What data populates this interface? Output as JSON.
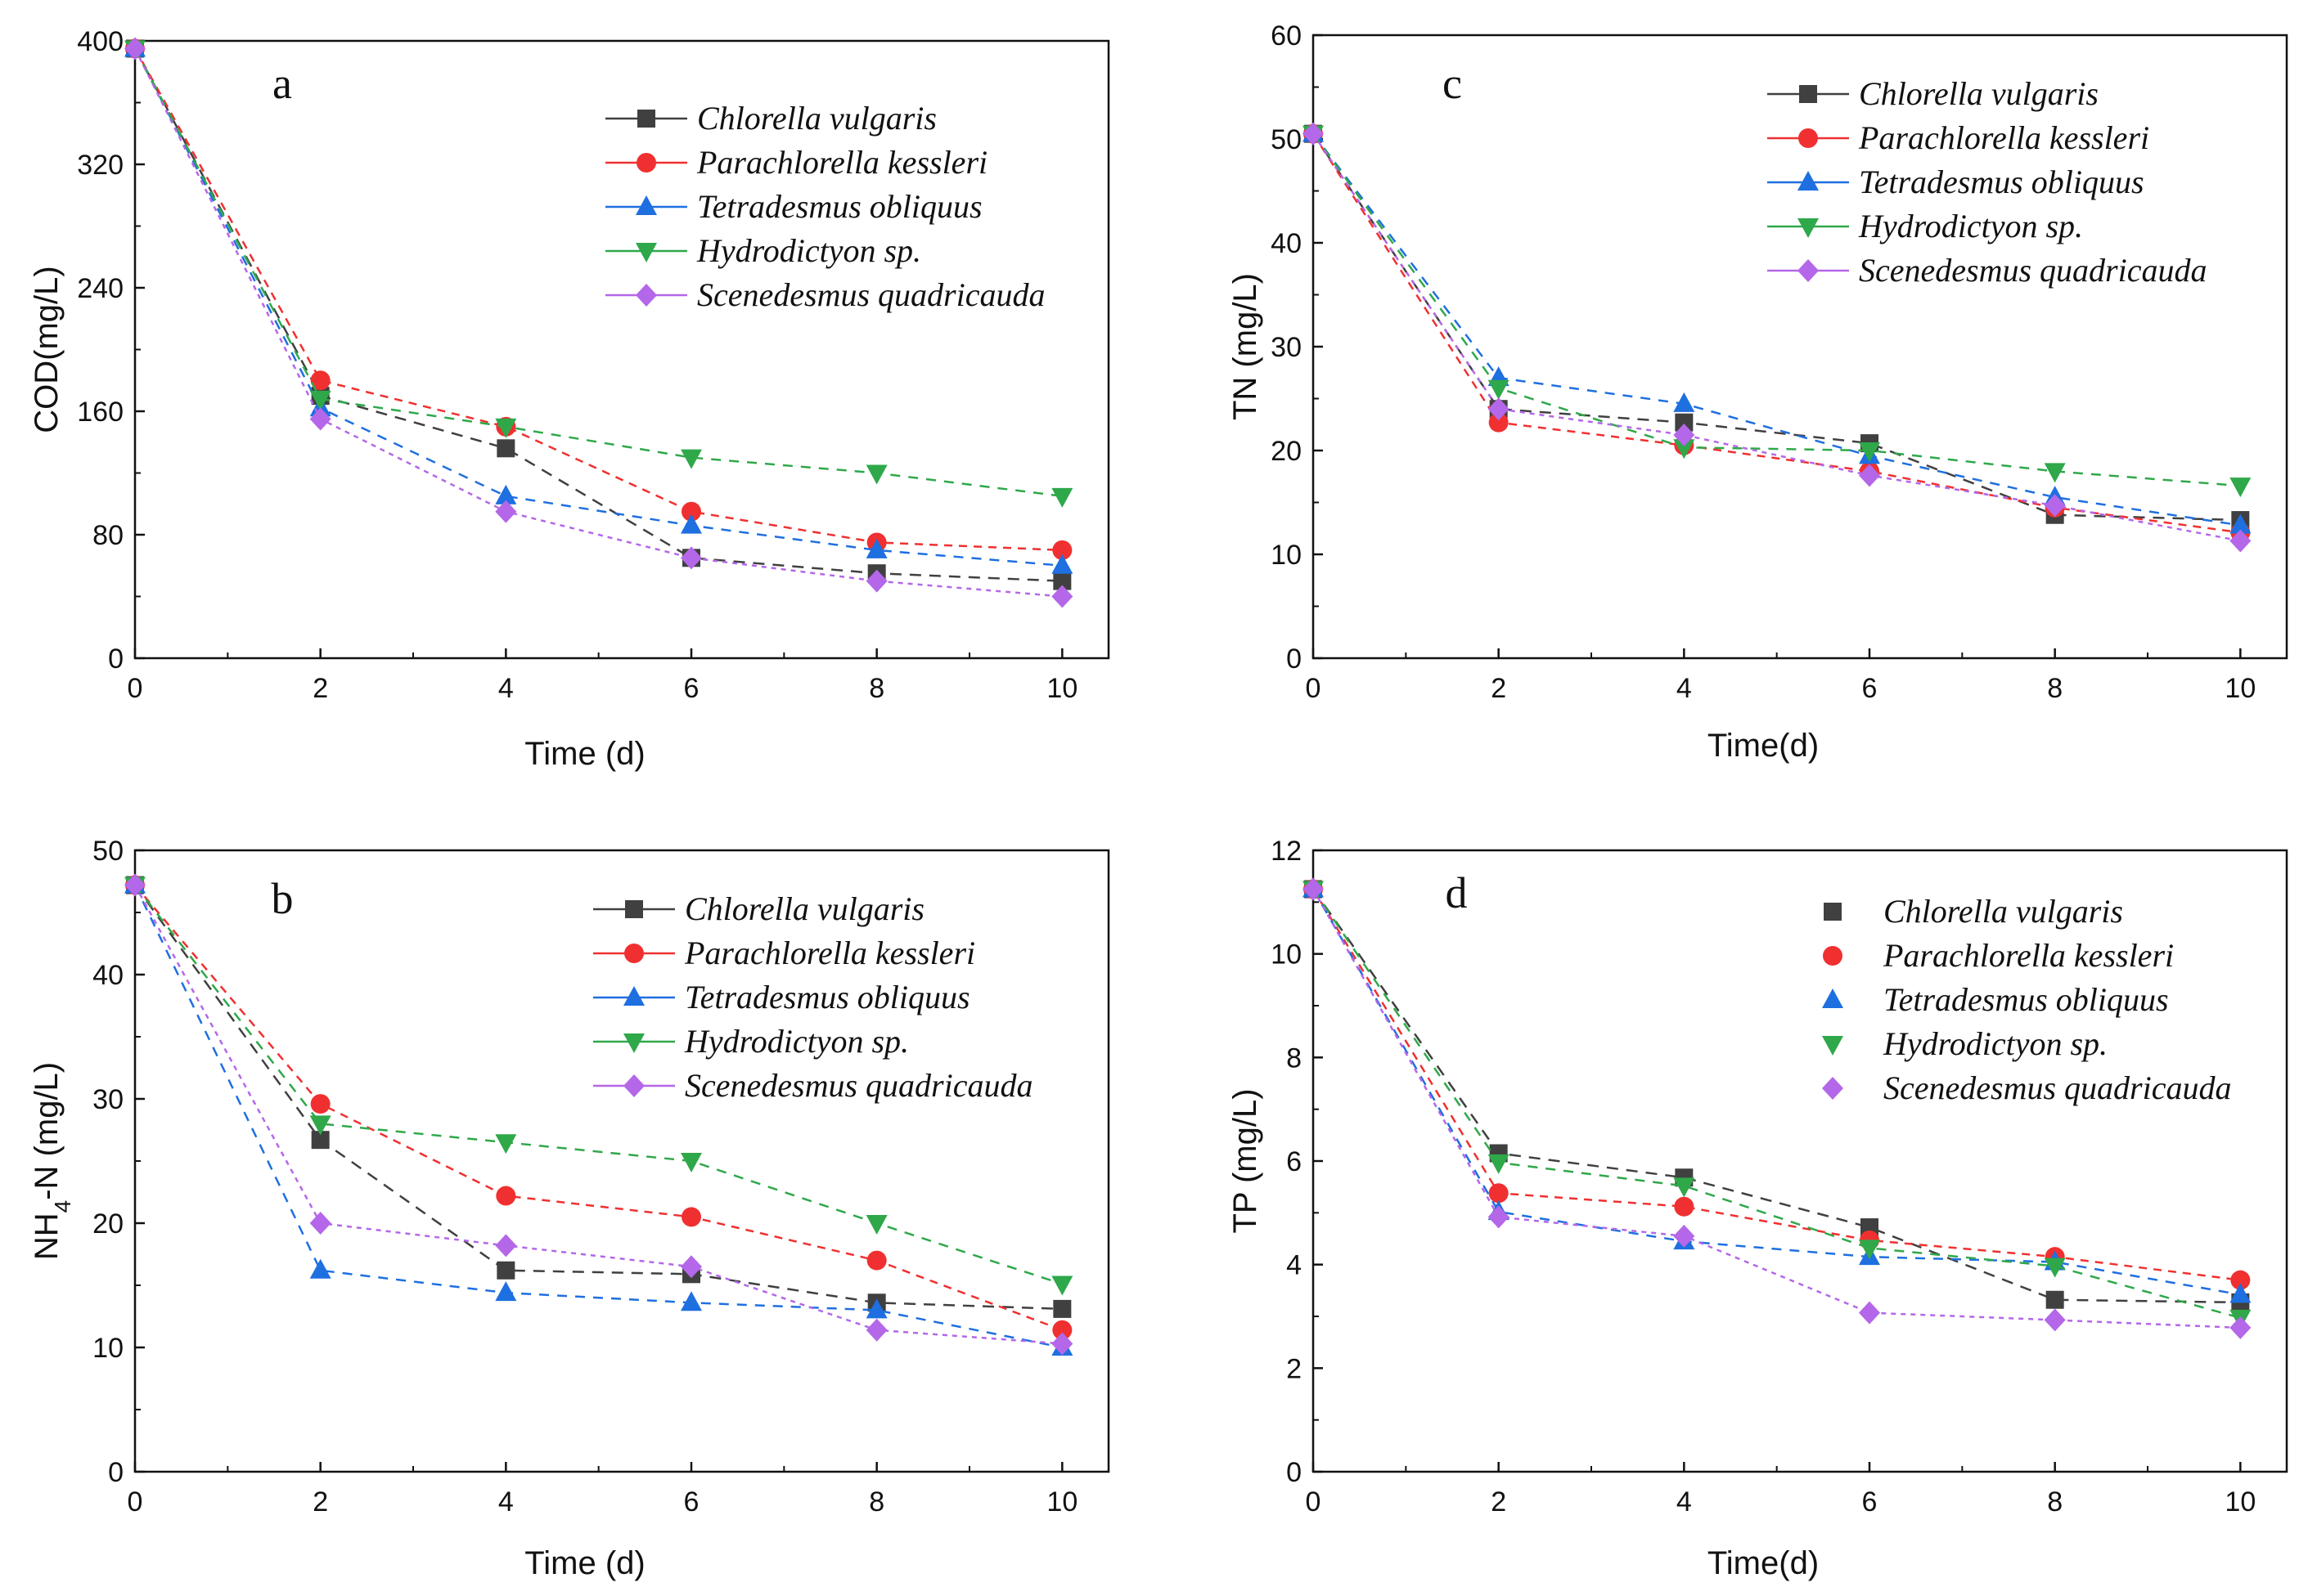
{
  "chart_data": [
    {
      "type": "line",
      "panel_letter": "a",
      "xlabel": "Time (d)",
      "ylabel": "COD(mg/L)",
      "xlim": [
        0,
        10.5
      ],
      "ylim": [
        0,
        400
      ],
      "xticks": [
        "0",
        "2",
        "4",
        "6",
        "8",
        "10"
      ],
      "yticks": [
        "0",
        "80",
        "160",
        "240",
        "320",
        "400"
      ],
      "x": [
        0,
        2,
        4,
        6,
        8,
        10
      ],
      "series": [
        {
          "name": "Chlorella vulgaris",
          "color": "#404040",
          "marker": "square",
          "values": [
            395,
            170,
            136,
            65,
            55,
            50
          ]
        },
        {
          "name": "Parachlorella kessleri",
          "color": "#f03030",
          "marker": "circle",
          "values": [
            395,
            180,
            150,
            95,
            75,
            70
          ]
        },
        {
          "name": "Tetradesmus obliquus",
          "color": "#1e6fe0",
          "marker": "triangle-up",
          "values": [
            395,
            162,
            105,
            86,
            70,
            60
          ]
        },
        {
          "name": "Hydrodictyon sp.",
          "color": "#2fa84a",
          "marker": "triangle-down",
          "values": [
            395,
            168,
            150,
            130,
            120,
            105
          ]
        },
        {
          "name": "Scenedesmus quadricauda",
          "color": "#b467e8",
          "marker": "diamond",
          "values": [
            395,
            155,
            95,
            65,
            50,
            40
          ]
        }
      ]
    },
    {
      "type": "line",
      "panel_letter": "b",
      "xlabel": "Time (d)",
      "ylabel": "NH4-N (mg/L)",
      "xlim": [
        0,
        10.5
      ],
      "ylim": [
        0,
        50
      ],
      "xticks": [
        "0",
        "2",
        "4",
        "6",
        "8",
        "10"
      ],
      "yticks": [
        "0",
        "10",
        "20",
        "30",
        "40",
        "50"
      ],
      "x": [
        0,
        2,
        4,
        6,
        8,
        10
      ],
      "series": [
        {
          "name": "Chlorella vulgaris",
          "color": "#404040",
          "marker": "square",
          "values": [
            47.2,
            26.7,
            16.2,
            15.9,
            13.6,
            13.1
          ]
        },
        {
          "name": "Parachlorella kessleri",
          "color": "#f03030",
          "marker": "circle",
          "values": [
            47.2,
            29.6,
            22.2,
            20.5,
            17.0,
            11.4
          ]
        },
        {
          "name": "Tetradesmus obliquus",
          "color": "#1e6fe0",
          "marker": "triangle-up",
          "values": [
            47.2,
            16.2,
            14.4,
            13.6,
            13.0,
            10.0
          ]
        },
        {
          "name": "Hydrodictyon sp.",
          "color": "#2fa84a",
          "marker": "triangle-down",
          "values": [
            47.2,
            28.0,
            26.5,
            25.0,
            20.0,
            15.1
          ]
        },
        {
          "name": "Scenedesmus quadricauda",
          "color": "#b467e8",
          "marker": "diamond",
          "values": [
            47.2,
            20.0,
            18.2,
            16.5,
            11.4,
            10.3
          ]
        }
      ]
    },
    {
      "type": "line",
      "panel_letter": "c",
      "xlabel": "Time(d)",
      "ylabel": "TN (mg/L)",
      "xlim": [
        0,
        10.5
      ],
      "ylim": [
        0,
        60
      ],
      "xticks": [
        "0",
        "2",
        "4",
        "6",
        "8",
        "10"
      ],
      "yticks": [
        "0",
        "10",
        "20",
        "30",
        "40",
        "50",
        "60"
      ],
      "x": [
        0,
        2,
        4,
        6,
        8,
        10
      ],
      "series": [
        {
          "name": "Chlorella vulgaris",
          "color": "#404040",
          "marker": "square",
          "values": [
            50.5,
            24.0,
            22.7,
            20.7,
            13.8,
            13.3
          ]
        },
        {
          "name": "Parachlorella kessleri",
          "color": "#f03030",
          "marker": "circle",
          "values": [
            50.5,
            22.7,
            20.5,
            18.0,
            14.5,
            12.1
          ]
        },
        {
          "name": "Tetradesmus obliquus",
          "color": "#1e6fe0",
          "marker": "triangle-up",
          "values": [
            50.5,
            27.0,
            24.5,
            19.5,
            15.5,
            12.8
          ]
        },
        {
          "name": "Hydrodictyon sp.",
          "color": "#2fa84a",
          "marker": "triangle-down",
          "values": [
            50.5,
            26.0,
            20.3,
            20.0,
            18.0,
            16.6
          ]
        },
        {
          "name": "Scenedesmus quadricauda",
          "color": "#b467e8",
          "marker": "diamond",
          "values": [
            50.5,
            24.0,
            21.5,
            17.6,
            14.7,
            11.3
          ]
        }
      ]
    },
    {
      "type": "line",
      "panel_letter": "d",
      "xlabel": "Time(d)",
      "ylabel": "TP (mg/L)",
      "xlim": [
        0,
        10.5
      ],
      "ylim": [
        0,
        12
      ],
      "xticks": [
        "0",
        "2",
        "4",
        "6",
        "8",
        "10"
      ],
      "yticks": [
        "0",
        "2",
        "4",
        "6",
        "8",
        "10",
        "12"
      ],
      "x": [
        0,
        2,
        4,
        6,
        8,
        10
      ],
      "series": [
        {
          "name": "Chlorella vulgaris",
          "color": "#404040",
          "marker": "square",
          "values": [
            11.25,
            6.15,
            5.68,
            4.72,
            3.32,
            3.27
          ]
        },
        {
          "name": "Parachlorella kessleri",
          "color": "#f03030",
          "marker": "circle",
          "values": [
            11.25,
            5.38,
            5.12,
            4.47,
            4.15,
            3.7
          ]
        },
        {
          "name": "Tetradesmus obliquus",
          "color": "#1e6fe0",
          "marker": "triangle-up",
          "values": [
            11.25,
            5.02,
            4.45,
            4.15,
            4.05,
            3.42
          ]
        },
        {
          "name": "Hydrodictyon sp.",
          "color": "#2fa84a",
          "marker": "triangle-down",
          "values": [
            11.25,
            5.97,
            5.52,
            4.32,
            3.97,
            2.97
          ]
        },
        {
          "name": "Scenedesmus quadricauda",
          "color": "#b467e8",
          "marker": "diamond",
          "values": [
            11.25,
            4.92,
            4.55,
            3.07,
            2.93,
            2.78
          ]
        }
      ]
    }
  ]
}
